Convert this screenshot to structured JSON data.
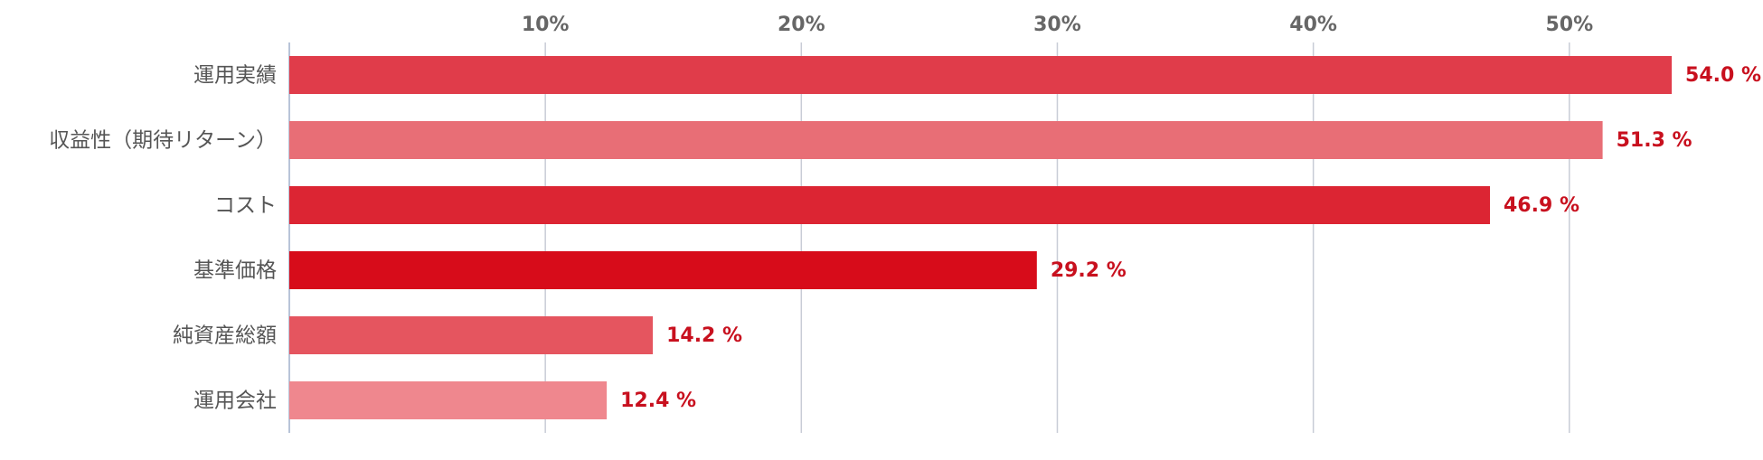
{
  "chart_data": {
    "type": "bar",
    "orientation": "horizontal",
    "categories": [
      "運用実績",
      "収益性（期待リターン）",
      "コスト",
      "基準価格",
      "純資産総額",
      "運用会社"
    ],
    "values": [
      54.0,
      51.3,
      46.9,
      29.2,
      14.2,
      12.4
    ],
    "value_labels": [
      "54.0 %",
      "51.3 %",
      "46.9 %",
      "29.2 %",
      "14.2 %",
      "12.4 %"
    ],
    "colors": [
      "#e03c4a",
      "#e86e76",
      "#dc2533",
      "#d70c1a",
      "#e5555f",
      "#ef878e"
    ],
    "xlim": [
      0,
      57
    ],
    "xticks": [
      {
        "value": 10,
        "label": "10%"
      },
      {
        "value": 20,
        "label": "20%"
      },
      {
        "value": 30,
        "label": "30%"
      },
      {
        "value": 40,
        "label": "40%"
      },
      {
        "value": 50,
        "label": "50%"
      }
    ],
    "grid": true
  }
}
